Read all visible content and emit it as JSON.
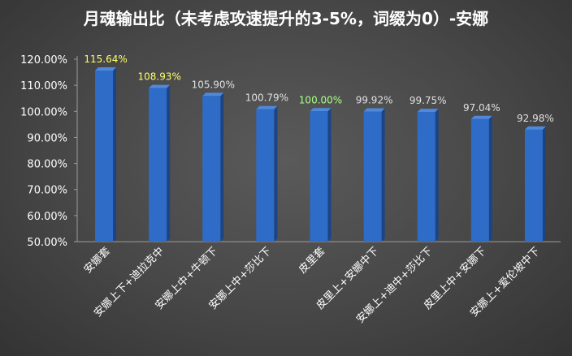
{
  "chart_data": {
    "type": "bar",
    "title": "月魂输出比（未考虑攻速提升的3-5%，词缀为0）-安娜",
    "categories": [
      "安娜套",
      "安娜上下+迪拉克中",
      "安娜上中+牛顿下",
      "安娜上中+莎比下",
      "皮里套",
      "皮里上+安娜中下",
      "安娜上+迪中+莎比下",
      "皮里上中+安娜下",
      "安娜上+爱伦坡中下"
    ],
    "values": [
      115.64,
      108.93,
      105.9,
      100.79,
      100.0,
      99.92,
      99.75,
      97.04,
      92.98
    ],
    "data_labels": [
      "115.64%",
      "108.93%",
      "105.90%",
      "100.79%",
      "100.00%",
      "99.92%",
      "99.75%",
      "97.04%",
      "92.98%"
    ],
    "data_label_colors": [
      "#ffff66",
      "#ffff66",
      "#e0e0e0",
      "#e0e0e0",
      "#a8ff8a",
      "#e0e0e0",
      "#e0e0e0",
      "#e0e0e0",
      "#e0e0e0"
    ],
    "ylim": [
      50,
      120
    ],
    "yticks": [
      50,
      60,
      70,
      80,
      90,
      100,
      110,
      120
    ],
    "ytick_labels": [
      "50.00%",
      "60.00%",
      "70.00%",
      "80.00%",
      "90.00%",
      "100.00%",
      "110.00%",
      "120.00%"
    ],
    "bar_color": "#2e6cc8",
    "grid": false
  }
}
